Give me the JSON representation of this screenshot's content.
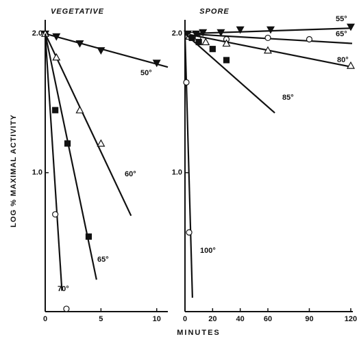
{
  "chart_data": [
    {
      "type": "line",
      "title": "VEGETATIVE",
      "ylabel": "LOG % MAXIMAL ACTIVITY",
      "xlim": [
        0,
        11
      ],
      "xticks": [
        0,
        5,
        10
      ],
      "ylim": [
        0,
        2.1
      ],
      "yticks": [
        {
          "value": 1,
          "label": "1.0"
        },
        {
          "value": 2,
          "label": "2.0"
        }
      ],
      "series": [
        {
          "name": "50°",
          "marker": "triangle-down",
          "x": [
            0,
            1,
            3.1,
            5,
            10
          ],
          "values": [
            2.0,
            1.98,
            1.93,
            1.88,
            1.79
          ],
          "line_x": [
            0,
            11
          ],
          "line_values": [
            2.0,
            1.76
          ]
        },
        {
          "name": "60°",
          "marker": "triangle",
          "x": [
            0,
            1,
            3.1,
            5
          ],
          "values": [
            2.0,
            1.83,
            1.45,
            1.21
          ],
          "line_x": [
            0,
            7.7
          ],
          "line_values": [
            2.0,
            0.69
          ]
        },
        {
          "name": "65°",
          "marker": "square",
          "x": [
            0.9,
            2,
            3.9
          ],
          "values": [
            1.45,
            1.21,
            0.54
          ],
          "line_x": [
            0,
            4.6
          ],
          "line_values": [
            2.0,
            0.23
          ]
        },
        {
          "name": "70°",
          "marker": "circle",
          "x": [
            0.9,
            1.9
          ],
          "values": [
            0.7,
            0.02
          ],
          "line_x": [
            0,
            1.5
          ],
          "line_values": [
            2.0,
            0.15
          ]
        }
      ]
    },
    {
      "type": "line",
      "title": "SPORE",
      "xlabel": "MINUTES",
      "xlim": [
        0,
        121.5
      ],
      "xticks": [
        0,
        20,
        40,
        60,
        90,
        120
      ],
      "ylim": [
        0,
        2.1
      ],
      "yticks": [
        {
          "value": 1,
          "label": "1.0"
        },
        {
          "value": 2,
          "label": "2.0"
        }
      ],
      "series": [
        {
          "name": "55°",
          "marker": "triangle-down",
          "x": [
            2,
            8,
            13,
            26,
            40,
            62,
            120
          ],
          "values": [
            2.0,
            2.0,
            2.01,
            2.01,
            2.03,
            2.03,
            2.05
          ],
          "line_x": [
            0,
            121
          ],
          "line_values": [
            2.0,
            2.04
          ]
        },
        {
          "name": "65°",
          "marker": "circle",
          "x": [
            5,
            9.4,
            30,
            60,
            90
          ],
          "values": [
            1.99,
            1.97,
            1.96,
            1.97,
            1.96
          ],
          "line_x": [
            0,
            121
          ],
          "line_values": [
            2.0,
            1.93
          ]
        },
        {
          "name": "80°",
          "marker": "triangle",
          "x": [
            3,
            15,
            30,
            60,
            120
          ],
          "values": [
            1.98,
            1.94,
            1.93,
            1.88,
            1.77
          ],
          "line_x": [
            0,
            121
          ],
          "line_values": [
            2.0,
            1.76
          ]
        },
        {
          "name": "85°",
          "marker": "square",
          "x": [
            5,
            10,
            20,
            30
          ],
          "values": [
            1.97,
            1.94,
            1.89,
            1.81
          ],
          "line_x": [
            0,
            65
          ],
          "line_values": [
            2.0,
            1.43
          ]
        },
        {
          "name": "100°",
          "marker": "circle",
          "x": [
            1,
            3
          ],
          "values": [
            1.65,
            0.57
          ],
          "line_x": [
            0,
            5.4
          ],
          "line_values": [
            2.0,
            0.1
          ]
        }
      ]
    }
  ]
}
